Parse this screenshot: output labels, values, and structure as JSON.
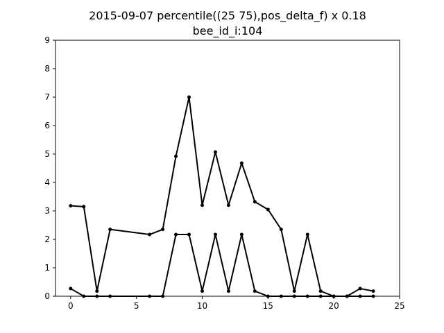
{
  "chart_data": {
    "type": "line",
    "title": "2015-09-07 percentile((25 75),pos_delta_f) x 0.18",
    "subtitle": "bee_id_i:104",
    "xlabel": "",
    "ylabel": "",
    "xlim": [
      -1.15,
      25
    ],
    "ylim": [
      0,
      9
    ],
    "xticks": [
      0,
      5,
      10,
      15,
      20,
      25
    ],
    "yticks": [
      0,
      1,
      2,
      3,
      4,
      5,
      6,
      7,
      8,
      9
    ],
    "grid": false,
    "legend": "none",
    "line_color": "#000000",
    "series": [
      {
        "x": [
          0,
          1,
          2,
          3,
          6,
          7,
          8,
          9,
          10,
          11,
          12,
          13,
          14,
          15,
          16,
          17,
          18,
          19,
          20,
          21,
          22,
          23
        ],
        "y": [
          3.18,
          3.15,
          0.18,
          2.35,
          2.17,
          2.35,
          4.92,
          7.0,
          3.2,
          5.07,
          3.2,
          4.68,
          3.32,
          3.05,
          2.35,
          0.18,
          2.17,
          0.18,
          0.0,
          0.0,
          0.27,
          0.18
        ]
      },
      {
        "x": [
          0,
          1,
          2,
          3,
          6,
          7,
          8,
          9,
          10,
          11,
          12,
          13,
          14,
          15,
          16,
          17,
          18,
          19,
          20,
          21,
          22,
          23
        ],
        "y": [
          0.27,
          0.0,
          0.0,
          0.0,
          0.0,
          0.0,
          2.17,
          2.17,
          0.18,
          2.17,
          0.18,
          2.17,
          0.18,
          0.0,
          0.0,
          0.0,
          0.0,
          0.0,
          0.0,
          0.0,
          0.0,
          0.0
        ]
      }
    ]
  }
}
